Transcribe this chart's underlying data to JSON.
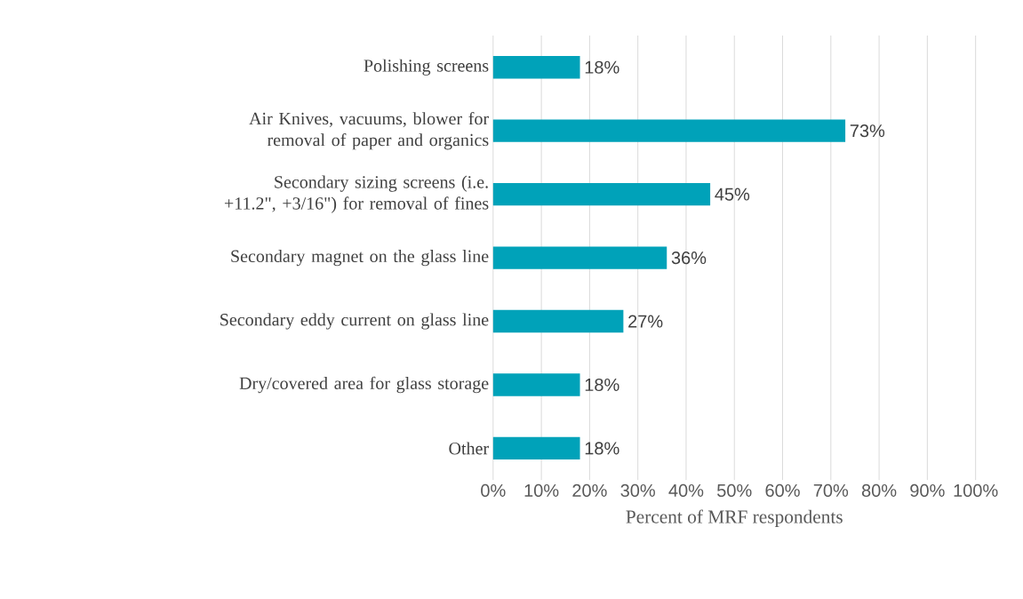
{
  "chart_data": {
    "type": "bar",
    "orientation": "horizontal",
    "xlabel": "Percent of MRF respondents",
    "categories": [
      "Polishing screens",
      "Air Knives, vacuums, blower for removal of paper and organics",
      "Secondary sizing screens (i.e. +11.2\", +3/16\") for removal of fines",
      "Secondary magnet on the glass line",
      "Secondary eddy current on glass line",
      "Dry/covered area for glass storage",
      "Other"
    ],
    "values": [
      18,
      73,
      45,
      36,
      27,
      18,
      18
    ],
    "value_labels": [
      "18%",
      "73%",
      "45%",
      "36%",
      "27%",
      "18%",
      "18%"
    ],
    "color": "#00a2b9",
    "xlim": [
      0,
      100
    ],
    "xticks": [
      {
        "value": 0,
        "label": "0%"
      },
      {
        "value": 10,
        "label": "10%"
      },
      {
        "value": 20,
        "label": "20%"
      },
      {
        "value": 30,
        "label": "30%"
      },
      {
        "value": 40,
        "label": "40%"
      },
      {
        "value": 50,
        "label": "50%"
      },
      {
        "value": 60,
        "label": "60%"
      },
      {
        "value": 70,
        "label": "70%"
      },
      {
        "value": 80,
        "label": "80%"
      },
      {
        "value": 90,
        "label": "90%"
      },
      {
        "value": 100,
        "label": "100%"
      }
    ],
    "grid": "x"
  }
}
